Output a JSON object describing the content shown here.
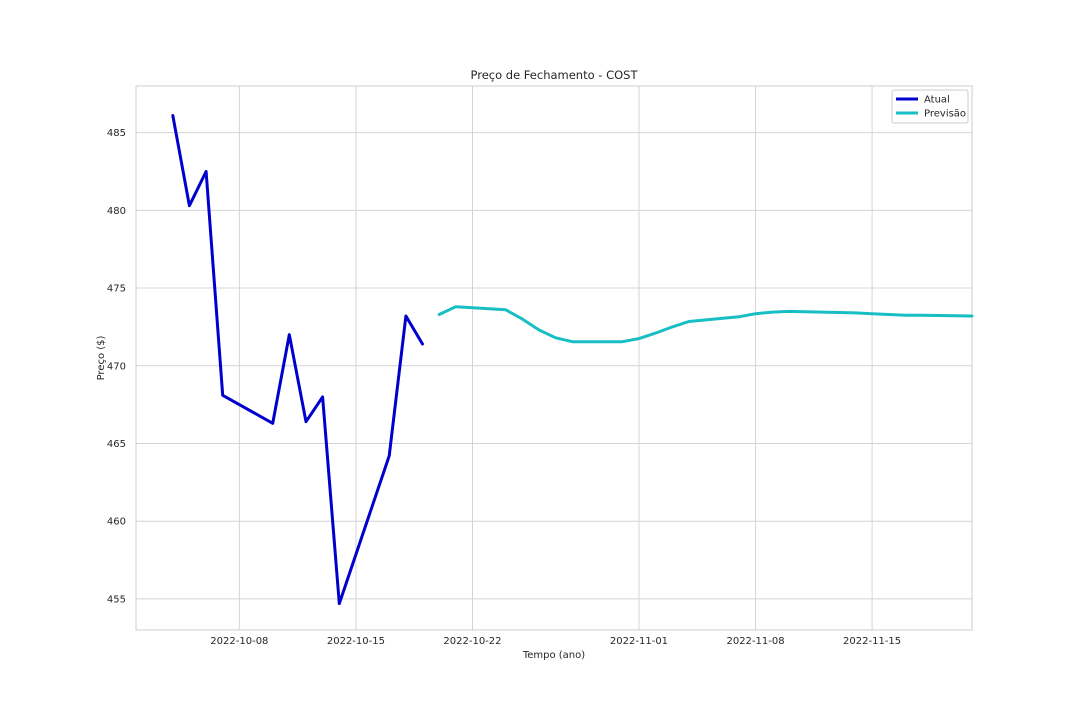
{
  "chart_data": {
    "type": "line",
    "title": "Preço de Fechamento - COST",
    "xlabel": "Tempo (ano)",
    "ylabel": "Preço ($)",
    "xlim": [
      "2022-10-01T19:00",
      "2022-11-21T00:00"
    ],
    "ylim": [
      453.0,
      488.0
    ],
    "x_ticks": [
      "2022-10-08",
      "2022-10-15",
      "2022-10-22",
      "2022-11-01",
      "2022-11-08",
      "2022-11-15"
    ],
    "y_ticks": [
      455,
      460,
      465,
      470,
      475,
      480,
      485
    ],
    "grid": true,
    "legend": "top-right",
    "series": [
      {
        "name": "Atual",
        "color": "#0000cc",
        "points": [
          [
            "2022-10-04",
            486.1
          ],
          [
            "2022-10-05",
            480.3
          ],
          [
            "2022-10-06",
            482.5
          ],
          [
            "2022-10-07",
            468.1
          ],
          [
            "2022-10-10",
            466.3
          ],
          [
            "2022-10-11",
            472.0
          ],
          [
            "2022-10-12",
            466.4
          ],
          [
            "2022-10-13",
            468.0
          ],
          [
            "2022-10-14",
            454.7
          ],
          [
            "2022-10-17",
            464.2
          ],
          [
            "2022-10-18",
            473.2
          ],
          [
            "2022-10-19",
            471.4
          ]
        ]
      },
      {
        "name": "Previsão",
        "color": "#17bec4",
        "points": [
          [
            "2022-10-20",
            473.3
          ],
          [
            "2022-10-21",
            473.8
          ],
          [
            "2022-10-24",
            473.6
          ],
          [
            "2022-10-25",
            473.0
          ],
          [
            "2022-10-26",
            472.3
          ],
          [
            "2022-10-27",
            471.8
          ],
          [
            "2022-10-28",
            471.55
          ],
          [
            "2022-10-31",
            471.55
          ],
          [
            "2022-11-01",
            471.75
          ],
          [
            "2022-11-02",
            472.1
          ],
          [
            "2022-11-03",
            472.5
          ],
          [
            "2022-11-04",
            472.85
          ],
          [
            "2022-11-07",
            473.15
          ],
          [
            "2022-11-08",
            473.35
          ],
          [
            "2022-11-09",
            473.45
          ],
          [
            "2022-11-10",
            473.5
          ],
          [
            "2022-11-14",
            473.4
          ],
          [
            "2022-11-15",
            473.35
          ],
          [
            "2022-11-16",
            473.3
          ],
          [
            "2022-11-17",
            473.25
          ],
          [
            "2022-11-18",
            473.25
          ],
          [
            "2022-11-21",
            473.2
          ]
        ]
      }
    ]
  }
}
